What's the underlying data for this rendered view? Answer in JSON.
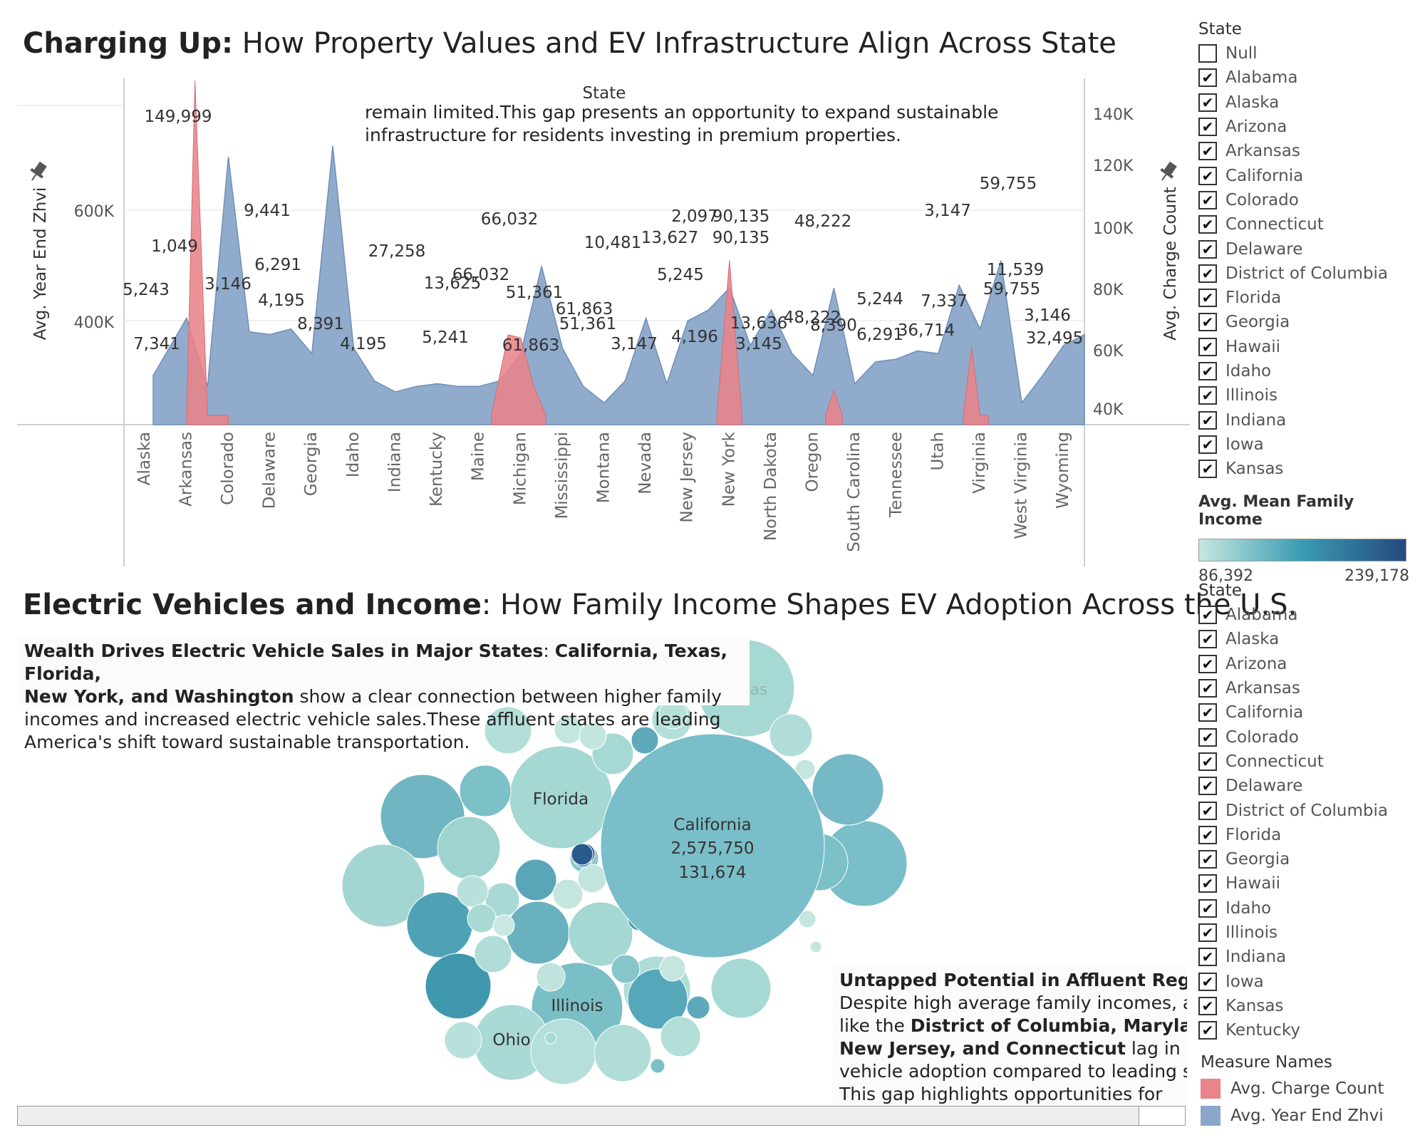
{
  "title1": {
    "bold": "Charging Up:",
    "rest": " How Property Values and EV Infrastructure Align Across State"
  },
  "title2": {
    "bold": "Electric Vehicles and Income",
    "rest": ": How Family Income Shapes EV Adoption Across the U.S."
  },
  "annotation1": {
    "line1": "remain limited.This gap presents an opportunity to expand sustainable",
    "line2": "infrastructure for residents investing in premium properties."
  },
  "note1": {
    "bold1": "Wealth Drives Electric Vehicle Sales in Major States",
    "sep": ": ",
    "bold2": "California, Texas, Florida,",
    "bold3": "New York, and Washington",
    "rest1": " show a clear connection between higher family",
    "line3": "incomes and increased electric vehicle sales.These affluent states are leading",
    "line4": "America's shift toward sustainable transportation."
  },
  "note2": {
    "bold1": "Untapped Potential in Affluent Regions",
    "sep": ":",
    "line2": "Despite high average family incomes, are",
    "pre3": "like the ",
    "bold3": "District of Columbia, Maryland,",
    "bold4": "New Jersey, and Connecticut",
    "rest4": " lag in elec",
    "line5": "vehicle adoption compared to leading sta",
    "line6": "This gap highlights opportunities for"
  },
  "state_filter_1": {
    "title": "State",
    "items": [
      {
        "label": "Null",
        "checked": false
      },
      {
        "label": "Alabama",
        "checked": true
      },
      {
        "label": "Alaska",
        "checked": true
      },
      {
        "label": "Arizona",
        "checked": true
      },
      {
        "label": "Arkansas",
        "checked": true
      },
      {
        "label": "California",
        "checked": true
      },
      {
        "label": "Colorado",
        "checked": true
      },
      {
        "label": "Connecticut",
        "checked": true
      },
      {
        "label": "Delaware",
        "checked": true
      },
      {
        "label": "District of Columbia",
        "checked": true
      },
      {
        "label": "Florida",
        "checked": true
      },
      {
        "label": "Georgia",
        "checked": true
      },
      {
        "label": "Hawaii",
        "checked": true
      },
      {
        "label": "Idaho",
        "checked": true
      },
      {
        "label": "Illinois",
        "checked": true
      },
      {
        "label": "Indiana",
        "checked": true
      },
      {
        "label": "Iowa",
        "checked": true
      },
      {
        "label": "Kansas",
        "checked": true
      }
    ]
  },
  "state_filter_2": {
    "title": "State",
    "items": [
      {
        "label": "Alabama",
        "checked": true
      },
      {
        "label": "Alaska",
        "checked": true
      },
      {
        "label": "Arizona",
        "checked": true
      },
      {
        "label": "Arkansas",
        "checked": true
      },
      {
        "label": "California",
        "checked": true
      },
      {
        "label": "Colorado",
        "checked": true
      },
      {
        "label": "Connecticut",
        "checked": true
      },
      {
        "label": "Delaware",
        "checked": true
      },
      {
        "label": "District of Columbia",
        "checked": true
      },
      {
        "label": "Florida",
        "checked": true
      },
      {
        "label": "Georgia",
        "checked": true
      },
      {
        "label": "Hawaii",
        "checked": true
      },
      {
        "label": "Idaho",
        "checked": true
      },
      {
        "label": "Illinois",
        "checked": true
      },
      {
        "label": "Indiana",
        "checked": true
      },
      {
        "label": "Iowa",
        "checked": true
      },
      {
        "label": "Kansas",
        "checked": true
      },
      {
        "label": "Kentucky",
        "checked": true
      }
    ]
  },
  "income_legend": {
    "title": "Avg. Mean Family Income",
    "min": "86,392",
    "max": "239,178"
  },
  "measure_legend": {
    "title": "Measure Names",
    "items": [
      {
        "label": "Avg. Charge Count",
        "color": "#e8848a"
      },
      {
        "label": "Avg. Year End Zhvi",
        "color": "#8aa6c9"
      }
    ]
  },
  "chart_data": [
    {
      "type": "area",
      "header": "State",
      "ylabel_left": "Avg. Year End Zhvi",
      "ylabel_right": "Avg. Charge Count",
      "yticks_left": [
        "400K",
        "600K"
      ],
      "yticks_right": [
        "40K",
        "60K",
        "80K",
        "100K",
        "120K",
        "140K"
      ],
      "ylim_left": [
        0,
        1000000
      ],
      "ylim_right": [
        35000,
        145000
      ],
      "grid": true,
      "axis_labels": [
        "Alaska",
        "Arkansas",
        "Colorado",
        "Delaware",
        "Georgia",
        "Idaho",
        "Indiana",
        "Kentucky",
        "Maine",
        "Michigan",
        "Mississippi",
        "Montana",
        "Nevada",
        "New Jersey",
        "New York",
        "North Dakota",
        "Oregon",
        "South Carolina",
        "Tennessee",
        "Utah",
        "Virginia",
        "West Virginia",
        "Wyoming"
      ],
      "series": [
        {
          "name": "Avg. Year End Zhvi",
          "color": "#8aa6c9",
          "x": [
            0.2,
            1,
            1.5,
            2,
            2.5,
            3,
            3.5,
            4,
            4.5,
            5,
            5.5,
            6,
            6.5,
            7,
            7.5,
            8,
            8.5,
            9,
            9.5,
            10,
            10.5,
            11,
            11.5,
            12,
            12.5,
            13,
            13.5,
            14,
            14.5,
            15,
            15.5,
            16,
            16.5,
            17,
            17.5,
            18,
            18.5,
            19,
            19.5,
            20,
            20.5,
            21,
            21.5,
            22,
            22.5
          ],
          "values": [
            180000,
            390000,
            140000,
            980000,
            340000,
            330000,
            350000,
            260000,
            1020000,
            280000,
            160000,
            120000,
            140000,
            150000,
            140000,
            140000,
            160000,
            260000,
            580000,
            280000,
            140000,
            80000,
            160000,
            390000,
            150000,
            380000,
            420000,
            500000,
            290000,
            420000,
            260000,
            180000,
            500000,
            150000,
            230000,
            240000,
            270000,
            260000,
            510000,
            350000,
            600000,
            80000,
            180000,
            290000,
            330000
          ]
        },
        {
          "name": "Avg. Charge Count",
          "color": "#e8848a",
          "x": [
            1,
            1.2,
            1.5,
            2,
            8.3,
            8.7,
            9,
            9.3,
            9.6,
            13.7,
            14,
            14.3,
            16.3,
            16.5,
            16.7,
            19.6,
            19.8,
            20,
            20.2
          ],
          "values": [
            40000,
            148000,
            40000,
            40000,
            40000,
            66000,
            65000,
            50000,
            40000,
            40000,
            90000,
            40000,
            40000,
            48000,
            40000,
            40000,
            62000,
            40000,
            40000
          ]
        }
      ],
      "data_labels": [
        "149,999",
        "1,049",
        "5,243",
        "7,341",
        "3,146",
        "9,441",
        "6,291",
        "4,195",
        "8,391",
        "27,258",
        "4,195",
        "5,241",
        "66,032",
        "66,032",
        "13,625",
        "61,863",
        "51,361",
        "51,361",
        "61,863",
        "10,481",
        "3,147",
        "13,627",
        "2,097",
        "90,135",
        "90,135",
        "5,245",
        "4,196",
        "13,636",
        "3,145",
        "48,222",
        "48,222",
        "8,390",
        "6,291",
        "5,244",
        "3,147",
        "7,337",
        "36,714",
        "59,755",
        "11,539",
        "59,755",
        "3,146",
        "32,495"
      ]
    },
    {
      "type": "bubble",
      "color_measure": "Avg. Mean Family Income",
      "bubbles": [
        {
          "state": "California",
          "value1": "2,575,750",
          "value2": "131,674"
        },
        {
          "state": "Texas"
        },
        {
          "state": "Florida"
        },
        {
          "state": "Illinois"
        },
        {
          "state": "Ohio"
        }
      ]
    }
  ]
}
